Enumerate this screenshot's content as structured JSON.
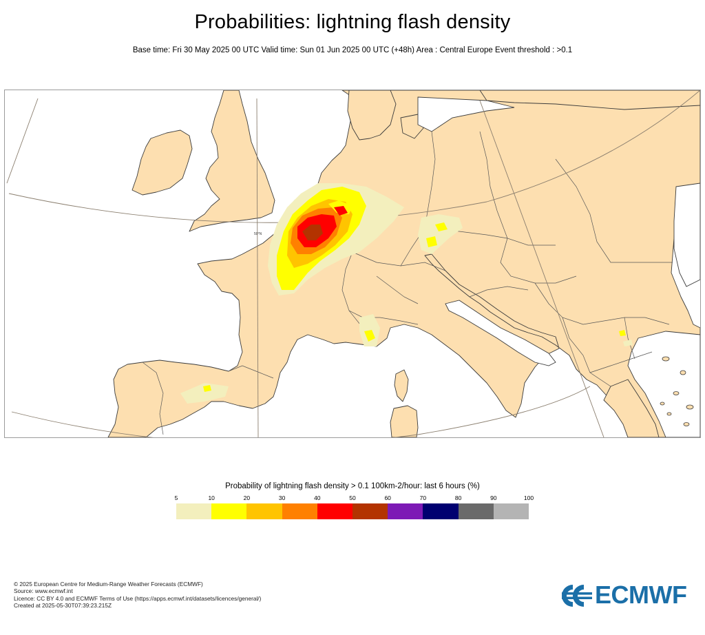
{
  "header": {
    "title": "Probabilities: lightning flash density",
    "subtitle": "Base time: Fri 30 May 2025 00 UTC Valid time: Sun 01 Jun 2025 00 UTC (+48h) Area : Central Europe Event threshold : >0.1"
  },
  "map": {
    "graticule_label": "50°N",
    "colors": {
      "sea": "#ffffff",
      "land": "#fddfb0",
      "coast": "#3a3a3a",
      "graticule": "#8a7e6e"
    }
  },
  "legend": {
    "title": "Probability of lightning flash density > 0.1 100km-2/hour: last 6 hours (%)",
    "ticks": [
      "5",
      "10",
      "20",
      "30",
      "40",
      "50",
      "60",
      "70",
      "80",
      "90",
      "100"
    ],
    "colors": [
      "#f3efbd",
      "#ffff00",
      "#ffc400",
      "#ff8000",
      "#ff0000",
      "#b33300",
      "#7d1ab5",
      "#000070",
      "#6a6a6a",
      "#b4b4b4"
    ]
  },
  "footer": {
    "lines": [
      "© 2025 European Centre for Medium-Range Weather Forecasts (ECMWF)",
      "Source: www.ecmwf.int",
      "Licence: CC BY 4.0 and ECMWF Terms of Use (https://apps.ecmwf.int/datasets/licences/general/)",
      "Created at 2025-05-30T07:39:23.215Z"
    ]
  },
  "logo": {
    "text": "ECMWF",
    "color": "#1b6fa8"
  }
}
